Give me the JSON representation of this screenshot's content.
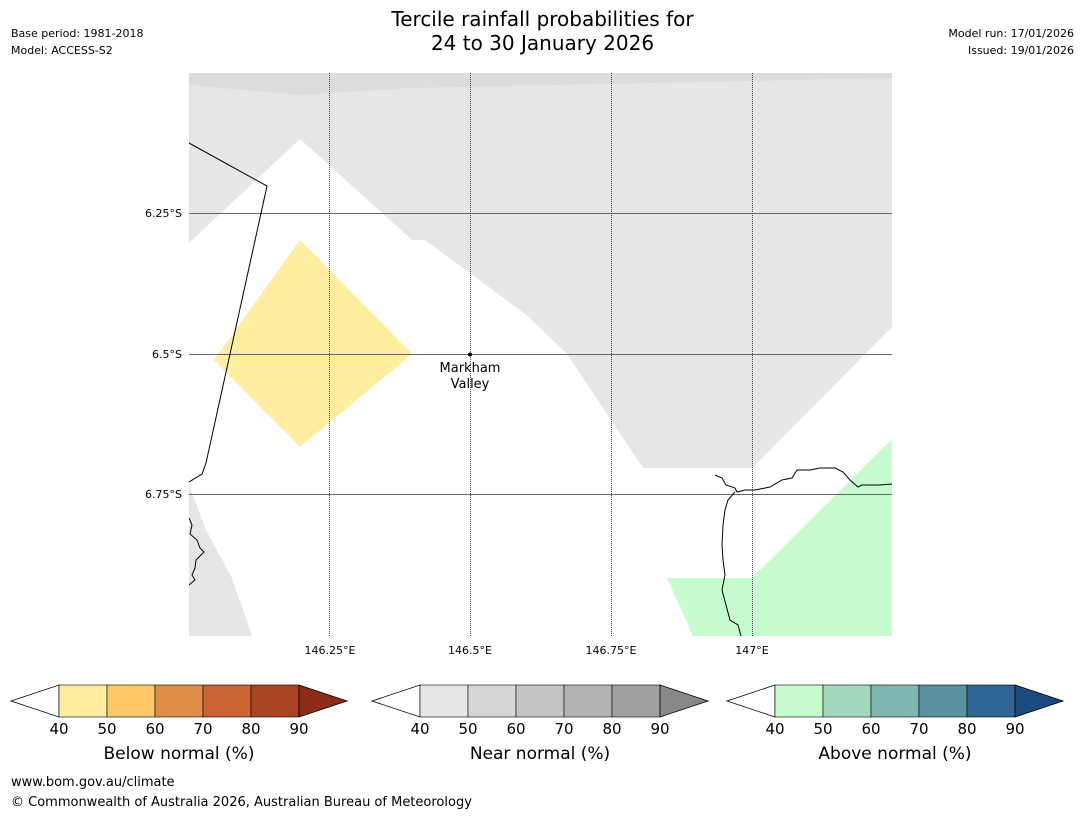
{
  "header": {
    "title_line1": "Tercile rainfall probabilities for",
    "title_line2": "24 to 30 January 2026",
    "base_period": "Base period: 1981-2018",
    "model": "Model: ACCESS-S2",
    "model_run": "Model run: 17/01/2026",
    "issued": "Issued: 19/01/2026"
  },
  "map": {
    "lat_labels": [
      "6.25°S",
      "6.5°S",
      "6.75°S"
    ],
    "lon_labels": [
      "146.25°E",
      "146.5°E",
      "146.75°E",
      "147°E"
    ],
    "place": {
      "name_line1": "Markham",
      "name_line2": "Valley",
      "lat": -6.5,
      "lon": 146.5
    },
    "colors": {
      "near_normal_40": "#e6e6e6",
      "below_normal_40": "#ffeda0",
      "above_normal_40": "#c7fcce",
      "grid": "#555555"
    }
  },
  "colorbars": [
    {
      "label": "Below normal (%)",
      "ticks": [
        "40",
        "50",
        "60",
        "70",
        "80",
        "90"
      ],
      "colors": [
        "#ffeda0",
        "#fec965",
        "#e08e45",
        "#cc6333",
        "#a84424"
      ],
      "extend_color": "#8c2d1a"
    },
    {
      "label": "Near normal (%)",
      "ticks": [
        "40",
        "50",
        "60",
        "70",
        "80",
        "90"
      ],
      "colors": [
        "#e6e6e6",
        "#d6d6d6",
        "#c5c5c5",
        "#b3b3b3",
        "#a0a0a0"
      ],
      "extend_color": "#888888"
    },
    {
      "label": "Above normal (%)",
      "ticks": [
        "40",
        "50",
        "60",
        "70",
        "80",
        "90"
      ],
      "colors": [
        "#c7fcce",
        "#a4d8bc",
        "#7fb7b0",
        "#5a93a0",
        "#2f6496"
      ],
      "extend_color": "#1a4a80"
    }
  ],
  "footer": {
    "url": "www.bom.gov.au/climate",
    "copyright": "© Commonwealth of Australia 2026, Australian Bureau of Meteorology"
  }
}
